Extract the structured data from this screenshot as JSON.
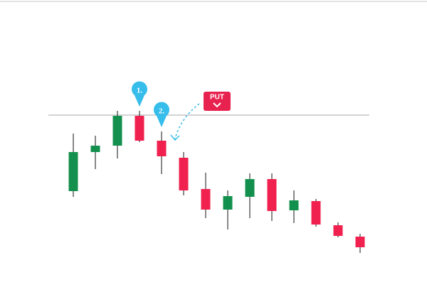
{
  "chart_data": {
    "type": "candlestick",
    "categories": [
      null,
      null,
      null,
      null,
      null,
      null,
      null,
      null,
      null,
      null,
      null,
      null,
      null,
      null
    ],
    "open": [
      149,
      204,
      213,
      255,
      220,
      196,
      152,
      123,
      141,
      166,
      122,
      135,
      101,
      85
    ],
    "high": [
      230,
      227,
      262,
      262,
      233,
      204,
      175,
      150,
      174,
      174,
      150,
      138,
      105,
      89
    ],
    "low": [
      141,
      180,
      195,
      218,
      173,
      143,
      111,
      95,
      111,
      107,
      104,
      99,
      84,
      62
    ],
    "close": [
      204,
      213,
      255,
      220,
      198,
      150,
      123,
      142,
      166,
      121,
      136,
      102,
      86,
      70
    ],
    "up_color": "#14904e",
    "down_color": "#f0214f",
    "ylim": [
      0,
      418
    ],
    "level": 256,
    "markers": [
      "1.",
      "2."
    ],
    "button": "PUT"
  }
}
